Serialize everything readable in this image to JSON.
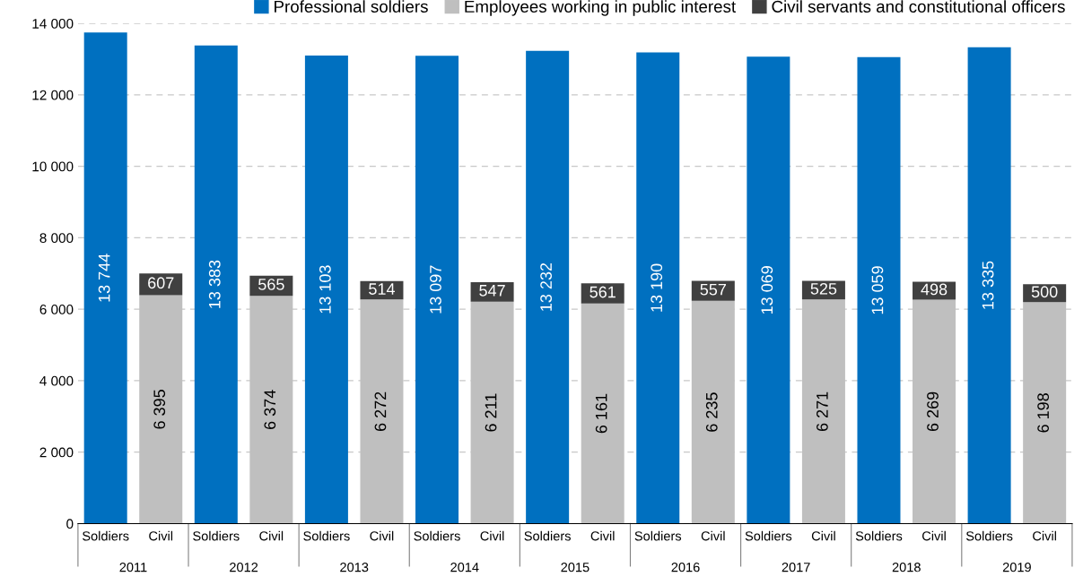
{
  "chart_data": {
    "type": "bar",
    "stacked": true,
    "categories": [
      "Soldiers",
      "Civil",
      "Soldiers",
      "Civil",
      "Soldiers",
      "Civil",
      "Soldiers",
      "Civil",
      "Soldiers",
      "Civil",
      "Soldiers",
      "Civil",
      "Soldiers",
      "Civil",
      "Soldiers",
      "Civil",
      "Soldiers",
      "Civil"
    ],
    "series": [
      {
        "name": "Professional soldiers",
        "color": "#0070c0",
        "values": [
          13744,
          null,
          13383,
          null,
          13103,
          null,
          13097,
          null,
          13232,
          null,
          13190,
          null,
          13069,
          null,
          13059,
          null,
          13335,
          null
        ],
        "value_labels": [
          "13 744",
          null,
          "13 383",
          null,
          "13 103",
          null,
          "13 097",
          null,
          "13 232",
          null,
          "13 190",
          null,
          "13 069",
          null,
          "13 059",
          null,
          "13 335",
          null
        ]
      },
      {
        "name": "Employees working in public interest",
        "color": "#bfbfbf",
        "values": [
          null,
          6395,
          null,
          6374,
          null,
          6272,
          null,
          6211,
          null,
          6161,
          null,
          6235,
          null,
          6271,
          null,
          6269,
          null,
          6198
        ],
        "value_labels": [
          null,
          "6 395",
          null,
          "6 374",
          null,
          "6 272",
          null,
          "6 211",
          null,
          "6 161",
          null,
          "6 235",
          null,
          "6 271",
          null,
          "6 269",
          null,
          "6 198"
        ]
      },
      {
        "name": "Civil servants and constitutional officers",
        "color": "#404040",
        "values": [
          null,
          607,
          null,
          565,
          null,
          514,
          null,
          547,
          null,
          561,
          null,
          557,
          null,
          525,
          null,
          498,
          null,
          500
        ],
        "value_labels": [
          null,
          "607",
          null,
          "565",
          null,
          "514",
          null,
          "547",
          null,
          "561",
          null,
          "557",
          null,
          "525",
          null,
          "498",
          null,
          "500"
        ]
      }
    ],
    "annotations": [
      "2011",
      "2012",
      "2013",
      "2014",
      "2015",
      "2016",
      "2017",
      "2018",
      "2019"
    ],
    "ylim": [
      0,
      14000
    ],
    "yticks": [
      {
        "value": 0,
        "label": "0"
      },
      {
        "value": 2000,
        "label": "2 000"
      },
      {
        "value": 4000,
        "label": "4 000"
      },
      {
        "value": 6000,
        "label": "6 000"
      },
      {
        "value": 8000,
        "label": "8 000"
      },
      {
        "value": 10000,
        "label": "10 000"
      },
      {
        "value": 12000,
        "label": "12 000"
      },
      {
        "value": 14000,
        "label": "14 000"
      }
    ],
    "grid": "y",
    "legend": "top"
  }
}
